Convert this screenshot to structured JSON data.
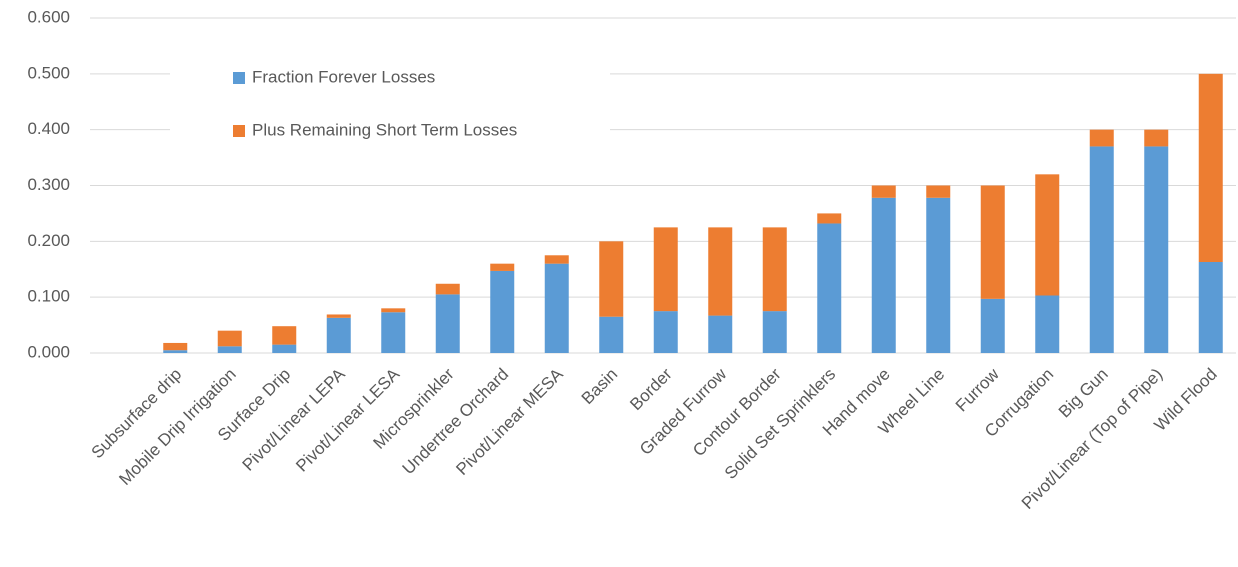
{
  "chart_data": {
    "type": "stacked_bar",
    "categories": [
      "Subsurface drip",
      "Mobile Drip Irrigation",
      "Surface Drip",
      "Pivot/Linear LEPA",
      "Pivot/Linear LESA",
      "Microsprinkler",
      "Undertree Orchard",
      "Pivot/Linear MESA",
      "Basin",
      "Border",
      "Graded Furrow",
      "Contour Border",
      "Solid Set Sprinklers",
      "Hand move",
      "Wheel Line",
      "Furrow",
      "Corrugation",
      "Big Gun",
      "Pivot/Linear (Top of Pipe)",
      "Wild Flood"
    ],
    "series": [
      {
        "name": "Fraction Forever Losses",
        "color": "#5b9bd5",
        "values": [
          0.005,
          0.012,
          0.015,
          0.063,
          0.073,
          0.105,
          0.147,
          0.16,
          0.065,
          0.075,
          0.067,
          0.075,
          0.232,
          0.278,
          0.278,
          0.097,
          0.103,
          0.37,
          0.37,
          0.163
        ]
      },
      {
        "name": "Plus Remaining Short Term Losses",
        "color": "#ed7d31",
        "values": [
          0.013,
          0.028,
          0.033,
          0.006,
          0.007,
          0.019,
          0.013,
          0.015,
          0.135,
          0.15,
          0.158,
          0.15,
          0.018,
          0.022,
          0.022,
          0.203,
          0.217,
          0.03,
          0.03,
          0.337
        ]
      }
    ],
    "ylim": [
      0,
      0.6
    ],
    "yticks": [
      {
        "value": 0,
        "label": "0.000"
      },
      {
        "value": 0.1,
        "label": "0.100"
      },
      {
        "value": 0.2,
        "label": "0.200"
      },
      {
        "value": 0.3,
        "label": "0.300"
      },
      {
        "value": 0.4,
        "label": "0.400"
      },
      {
        "value": 0.5,
        "label": "0.500"
      },
      {
        "value": 0.6,
        "label": "0.600"
      }
    ],
    "grid": true,
    "legend": "top-left"
  }
}
